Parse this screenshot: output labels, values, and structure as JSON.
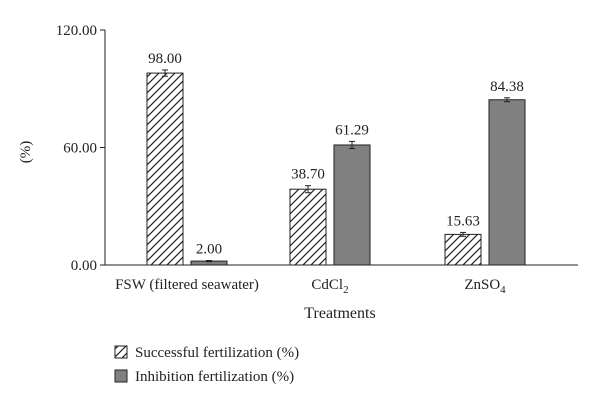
{
  "chart_data": {
    "type": "bar",
    "categories": [
      "FSW (filtered seawater)",
      "CdCl2",
      "ZnSO4"
    ],
    "category_labels": [
      {
        "base": "FSW (filtered seawater)",
        "sub": ""
      },
      {
        "base": "CdCl",
        "sub": "2"
      },
      {
        "base": "ZnSO",
        "sub": "4"
      }
    ],
    "series": [
      {
        "name": "Successful fertilization (%)",
        "values": [
          98.0,
          38.7,
          15.63
        ],
        "errors": [
          1.6,
          1.8,
          1.0
        ],
        "labels": [
          "98.00",
          "38.70",
          "15.63"
        ],
        "fill": "hatched",
        "color": "#ffffff"
      },
      {
        "name": "Inhibition fertilization (%)",
        "values": [
          2.0,
          61.29,
          84.38
        ],
        "errors": [
          0.3,
          1.8,
          1.0
        ],
        "labels": [
          "2.00",
          "61.29",
          "84.38"
        ],
        "fill": "solid",
        "color": "#808080"
      }
    ],
    "title": "",
    "xlabel": "Treatments",
    "ylabel": "(%)",
    "ylim": [
      0,
      120
    ],
    "yticks": [
      0,
      60,
      120
    ],
    "ytick_labels": [
      "0.00",
      "60.00",
      "120.00"
    ],
    "grid": false,
    "legend": "bottom"
  }
}
